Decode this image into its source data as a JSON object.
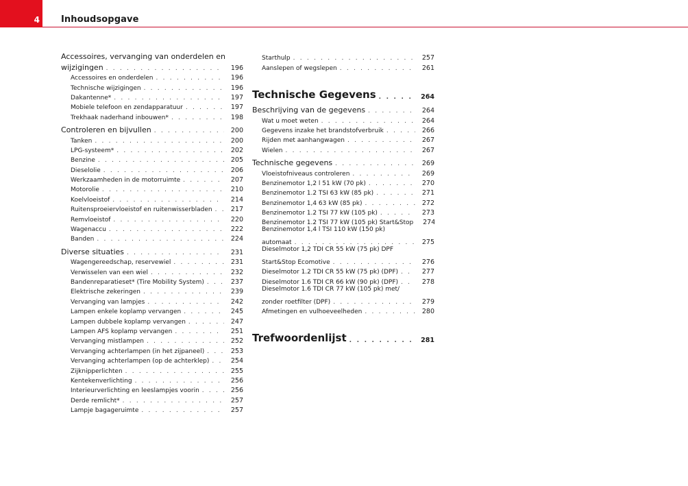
{
  "header": {
    "page_number": "4",
    "title": "Inhoudsopgave",
    "accent_color": "#e3101e"
  },
  "columns": [
    [
      {
        "type": "main",
        "text": "Accessoires, vervanging van onderdelen en",
        "text_cont": "wijzigingen",
        "page": "196"
      },
      {
        "type": "sub",
        "text": "Accessoires en onderdelen",
        "page": "196"
      },
      {
        "type": "sub",
        "text": "Technische wijzigingen",
        "page": "196"
      },
      {
        "type": "sub",
        "text": "Dakantenne*",
        "page": "197"
      },
      {
        "type": "sub",
        "text": "Mobiele telefoon en zendapparatuur",
        "page": "197"
      },
      {
        "type": "sub",
        "text": "Trekhaak naderhand inbouwen*",
        "page": "198"
      },
      {
        "type": "main",
        "text": "Controleren en bijvullen",
        "page": "200"
      },
      {
        "type": "sub",
        "text": "Tanken",
        "page": "200"
      },
      {
        "type": "sub",
        "text": "LPG-systeem*",
        "page": "202"
      },
      {
        "type": "sub",
        "text": "Benzine",
        "page": "205"
      },
      {
        "type": "sub",
        "text": "Dieselolie",
        "page": "206"
      },
      {
        "type": "sub",
        "text": "Werkzaamheden in de motorruimte",
        "page": "207"
      },
      {
        "type": "sub",
        "text": "Motorolie",
        "page": "210"
      },
      {
        "type": "sub",
        "text": "Koelvloeistof",
        "page": "214"
      },
      {
        "type": "sub",
        "text": "Ruitensproeiervloeistof en ruitenwisserbladen",
        "page": "217"
      },
      {
        "type": "sub",
        "text": "Remvloeistof",
        "page": "220"
      },
      {
        "type": "sub",
        "text": "Wagenaccu",
        "page": "222"
      },
      {
        "type": "sub",
        "text": "Banden",
        "page": "224"
      },
      {
        "type": "main",
        "text": "Diverse situaties",
        "page": "231"
      },
      {
        "type": "sub",
        "text": "Wagengereedschap, reservewiel",
        "page": "231"
      },
      {
        "type": "sub",
        "text": "Verwisselen van een wiel",
        "page": "232"
      },
      {
        "type": "sub",
        "text": "Bandenreparatieset* (Tire Mobility System)",
        "page": "237"
      },
      {
        "type": "sub",
        "text": "Elektrische zekeringen",
        "page": "239"
      },
      {
        "type": "sub",
        "text": "Vervanging van lampjes",
        "page": "242"
      },
      {
        "type": "sub",
        "text": "Lampen enkele koplamp vervangen",
        "page": "245"
      },
      {
        "type": "sub",
        "text": "Lampen dubbele koplamp vervangen",
        "page": "247"
      },
      {
        "type": "sub",
        "text": "Lampen AFS koplamp vervangen",
        "page": "251"
      },
      {
        "type": "sub",
        "text": "Vervanging mistlampen",
        "page": "252"
      },
      {
        "type": "sub",
        "text": "Vervanging achterlampen (in het zijpaneel)",
        "page": "253"
      },
      {
        "type": "sub",
        "text": "Vervanging achterlampen (op de achterklep)",
        "page": "254"
      },
      {
        "type": "sub",
        "text": "Zijknipperlichten",
        "page": "255"
      },
      {
        "type": "sub",
        "text": "Kentekenverlichting",
        "page": "256"
      },
      {
        "type": "sub",
        "text": "Interieurverlichting en leeslampjes voorin",
        "page": "256"
      },
      {
        "type": "sub",
        "text": "Derde remlicht*",
        "page": "257"
      },
      {
        "type": "sub",
        "text": "Lampje bagageruimte",
        "page": "257"
      }
    ],
    [
      {
        "type": "sub",
        "text": "Starthulp",
        "page": "257"
      },
      {
        "type": "sub",
        "text": "Aanslepen of wegslepen",
        "page": "261"
      },
      {
        "type": "heading",
        "text": "Technische Gegevens",
        "page": "264"
      },
      {
        "type": "main",
        "text": "Beschrijving van de gegevens",
        "page": "264"
      },
      {
        "type": "sub",
        "text": "Wat u moet weten",
        "page": "264"
      },
      {
        "type": "sub",
        "text": "Gegevens inzake het brandstofverbruik",
        "page": "266"
      },
      {
        "type": "sub",
        "text": "Rijden met aanhangwagen",
        "page": "267"
      },
      {
        "type": "sub",
        "text": "Wielen",
        "page": "267"
      },
      {
        "type": "main",
        "text": "Technische gegevens",
        "page": "269"
      },
      {
        "type": "sub",
        "text": "Vloeistofniveaus controleren",
        "page": "269"
      },
      {
        "type": "sub",
        "text": "Benzinemotor 1,2 l 51 kW (70 pk)",
        "page": "270"
      },
      {
        "type": "sub",
        "text": "Benzinemotor 1.2 TSI 63 kW (85 pk)",
        "page": "271"
      },
      {
        "type": "sub",
        "text": "Benzinemotor 1,4 63 kW (85 pk)",
        "page": "272"
      },
      {
        "type": "sub",
        "text": "Benzinemotor 1.2 TSI 77 kW (105 pk)",
        "page": "273"
      },
      {
        "type": "sub",
        "text": "Benzinemotor 1.2 TSI 77 kW (105 pk) Start&Stop",
        "page": "274"
      },
      {
        "type": "sub",
        "text": "Benzinemotor 1,4 l TSI 110 kW (150 pk)",
        "text_cont": "automaat",
        "page": "275"
      },
      {
        "type": "sub",
        "text": "Dieselmotor 1,2 TDI CR 55 kW (75 pk) DPF",
        "text_cont": "Start&Stop Ecomotive",
        "page": "276"
      },
      {
        "type": "sub",
        "text": "Dieselmotor 1.2 TDI CR 55 kW (75 pk) (DPF)",
        "page": "277"
      },
      {
        "type": "sub",
        "text": "Dieselmotor 1.6 TDI CR 66 kW (90 pk) (DPF)",
        "page": "278"
      },
      {
        "type": "sub",
        "text": "Dieselmotor 1.6 TDI CR 77 kW (105 pk) met/",
        "text_cont": "zonder roetfilter (DPF)",
        "page": "279"
      },
      {
        "type": "sub",
        "text": "Afmetingen en vulhoeveelheden",
        "page": "280"
      },
      {
        "type": "heading",
        "text": "Trefwoordenlijst",
        "page": "281"
      }
    ]
  ]
}
